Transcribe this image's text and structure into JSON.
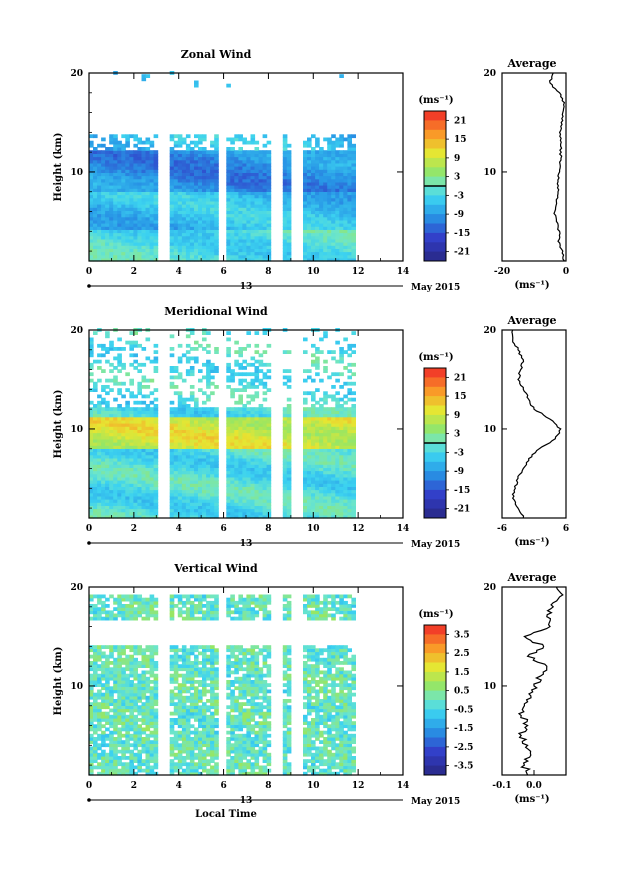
{
  "figure": {
    "date_label": "May 2015",
    "day_label": "13",
    "x_label": "Local Time",
    "y_label": "Height (km)",
    "average_title": "Average",
    "unit_label": "(ms⁻¹)"
  },
  "chart_data": [
    {
      "id": "zonal",
      "type": "heatmap",
      "title": "Zonal Wind",
      "xlabel": "",
      "ylabel": "Height (km)",
      "xlim": [
        0,
        14
      ],
      "ylim": [
        1,
        20
      ],
      "x_ticks": [
        0,
        2,
        4,
        6,
        8,
        10,
        12,
        14
      ],
      "y_ticks": [
        10,
        20
      ],
      "data_window_hours": [
        0,
        11.8
      ],
      "data_gaps_hours": [
        [
          3.1,
          3.5
        ],
        [
          5.8,
          6.1
        ],
        [
          8.2,
          8.6
        ],
        [
          9.0,
          9.4
        ]
      ],
      "colorbar": {
        "unit": "(ms⁻¹)",
        "range": [
          -24,
          24
        ],
        "ticks": [
          21,
          15,
          9,
          3,
          -3,
          -9,
          -15,
          -21
        ],
        "zero_line": true
      },
      "profile": {
        "title": "Average",
        "xlim": [
          -20,
          0
        ],
        "x_ticks": [
          -20,
          0
        ],
        "x_tick_labels": [
          "-20",
          "0"
        ],
        "xlabel": "(ms⁻¹)",
        "y_ticks": [
          10,
          20
        ],
        "heights": [
          1,
          2,
          3,
          4,
          5,
          6,
          7,
          8,
          9,
          10,
          11,
          12,
          13,
          14,
          15,
          16,
          17,
          18,
          19,
          20
        ],
        "values": [
          -0.5,
          -1,
          -2.5,
          -2,
          -3,
          -3.5,
          -3,
          -2.5,
          -2.5,
          -2,
          -2,
          -1.5,
          -1.5,
          -2,
          -1.5,
          -1,
          -0.5,
          -2,
          -5,
          -4
        ]
      }
    },
    {
      "id": "meridional",
      "type": "heatmap",
      "title": "Meridional Wind",
      "xlabel": "",
      "ylabel": "Height (km)",
      "xlim": [
        0,
        14
      ],
      "ylim": [
        1,
        20
      ],
      "x_ticks": [
        0,
        2,
        4,
        6,
        8,
        10,
        12,
        14
      ],
      "y_ticks": [
        10,
        20
      ],
      "data_window_hours": [
        0,
        11.8
      ],
      "data_gaps_hours": [
        [
          3.1,
          3.5
        ],
        [
          5.8,
          6.1
        ],
        [
          8.2,
          8.6
        ],
        [
          9.0,
          9.4
        ]
      ],
      "colorbar": {
        "unit": "(ms⁻¹)",
        "range": [
          -24,
          24
        ],
        "ticks": [
          21,
          15,
          9,
          3,
          -3,
          -9,
          -15,
          -21
        ],
        "zero_line": true
      },
      "profile": {
        "title": "Average",
        "xlim": [
          -6,
          6
        ],
        "x_ticks": [
          -6,
          6
        ],
        "x_tick_labels": [
          "-6",
          "6"
        ],
        "xlabel": "(ms⁻¹)",
        "y_ticks": [
          10,
          20
        ],
        "heights": [
          1,
          2,
          3,
          4,
          5,
          6,
          7,
          8,
          9,
          10,
          11,
          12,
          13,
          14,
          15,
          16,
          17,
          18,
          19,
          20
        ],
        "values": [
          -2,
          -3,
          -4,
          -3.5,
          -3,
          -2,
          -1,
          1,
          4,
          5,
          3,
          0,
          -1,
          -2,
          -3,
          -2.5,
          -2,
          -3,
          -4,
          -4
        ]
      }
    },
    {
      "id": "vertical",
      "type": "heatmap",
      "title": "Vertical Wind",
      "xlabel": "Local Time",
      "ylabel": "Height (km)",
      "xlim": [
        0,
        14
      ],
      "ylim": [
        1,
        20
      ],
      "x_ticks": [
        0,
        2,
        4,
        6,
        8,
        10,
        12,
        14
      ],
      "y_ticks": [
        10,
        20
      ],
      "data_window_hours": [
        0,
        11.8
      ],
      "data_gaps_hours": [
        [
          3.1,
          3.5
        ],
        [
          5.8,
          6.1
        ],
        [
          8.2,
          8.6
        ],
        [
          9.0,
          9.4
        ]
      ],
      "colorbar": {
        "unit": "(ms⁻¹)",
        "range": [
          -4,
          4
        ],
        "ticks": [
          3.5,
          2.5,
          1.5,
          0.5,
          -0.5,
          -1.5,
          -2.5,
          -3.5
        ],
        "zero_line": false
      },
      "profile": {
        "title": "Average",
        "xlim": [
          -0.1,
          0.1
        ],
        "x_ticks": [
          -0.1,
          0.0
        ],
        "x_tick_labels": [
          "-0.1",
          "0.0"
        ],
        "xlabel": "(ms⁻¹)",
        "y_ticks": [
          10,
          20
        ],
        "heights": [
          1,
          2,
          3,
          4,
          5,
          6,
          7,
          8,
          9,
          10,
          11,
          12,
          13,
          14,
          15,
          16,
          17,
          18,
          19,
          20
        ],
        "values": [
          -0.02,
          -0.03,
          -0.01,
          -0.02,
          -0.04,
          -0.02,
          -0.04,
          -0.03,
          -0.01,
          0.0,
          0.02,
          0.04,
          -0.02,
          0.03,
          -0.03,
          0.05,
          0.04,
          0.06,
          0.08,
          0.07
        ]
      }
    }
  ]
}
